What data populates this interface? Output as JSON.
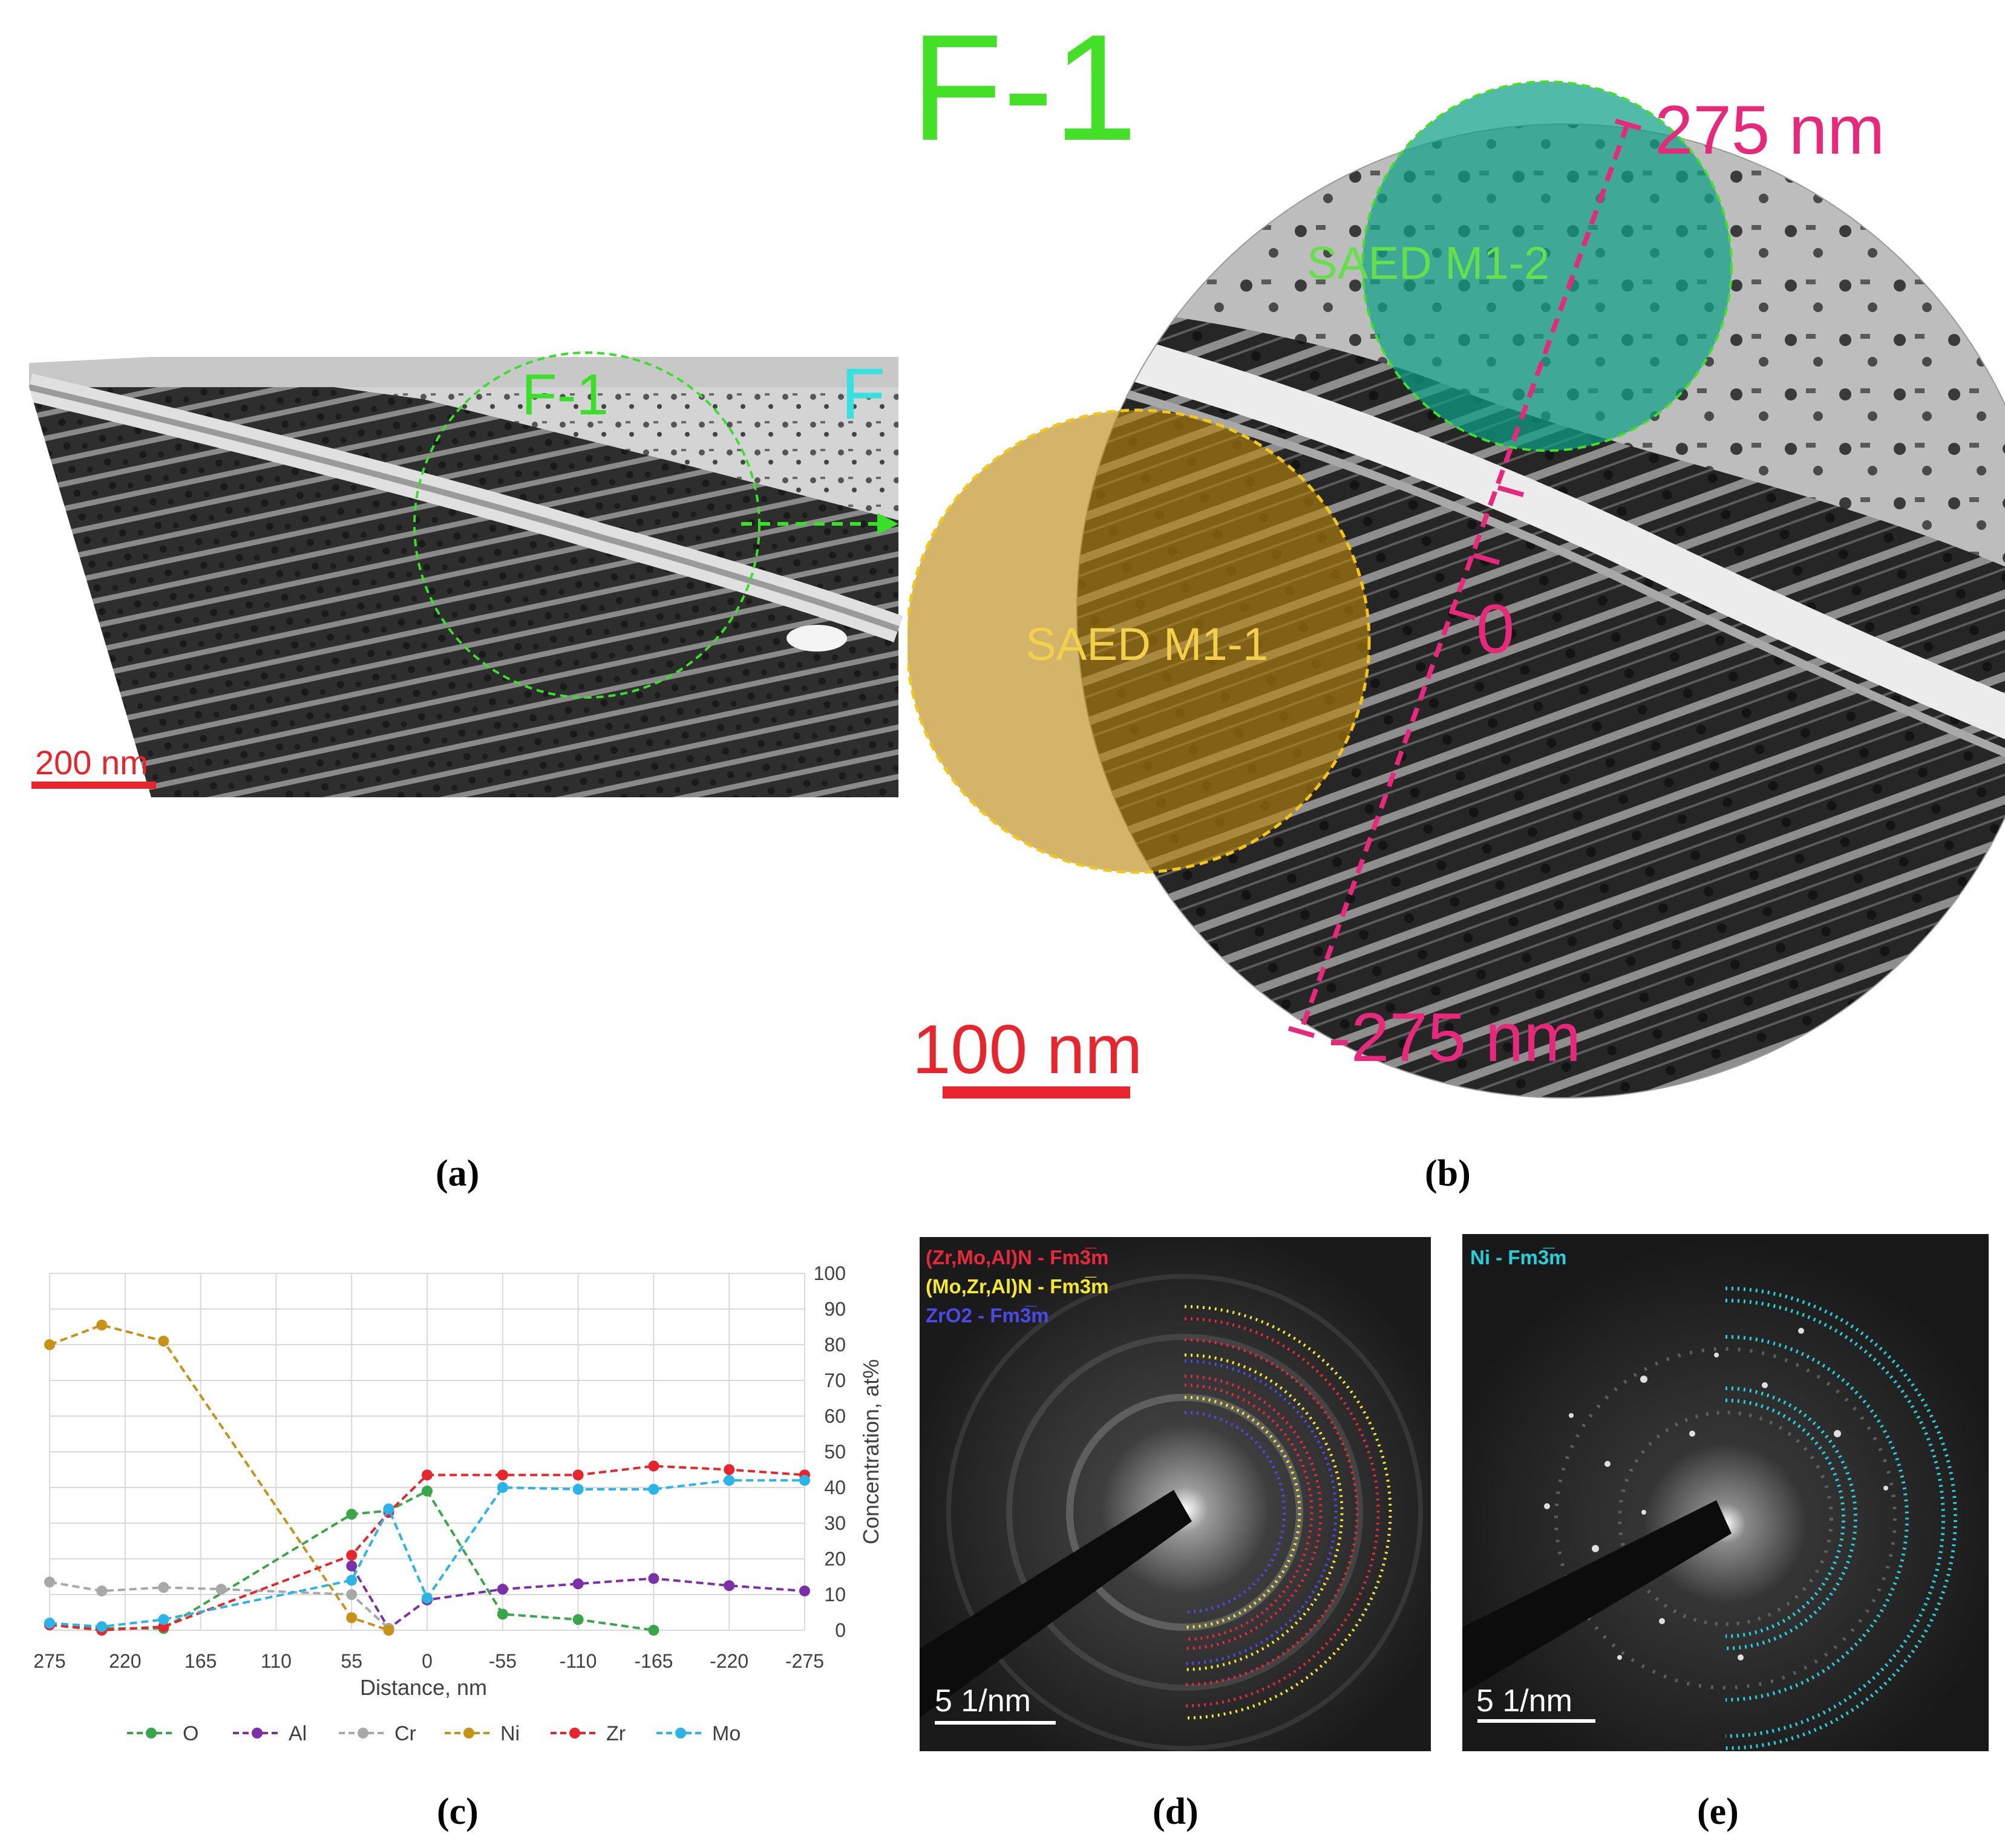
{
  "panel_a": {
    "caption": "(a)",
    "scale_bar": "200 nm",
    "region_label": "F-1",
    "zone_label": "F"
  },
  "panel_b": {
    "caption": "(b)",
    "title": "F-1",
    "scale_bar": "100 nm",
    "saed_regions": [
      "SAED M1-1",
      "SAED M1-2"
    ],
    "line_top": "275 nm",
    "line_zero": "0",
    "line_bottom": "-275 nm"
  },
  "panel_c": {
    "caption": "(c)"
  },
  "panel_d": {
    "caption": "(d)",
    "scale_bar": "5 1/nm",
    "phase_labels": [
      {
        "text": "(Zr,Mo,Al)N - Fm3̅m",
        "color": "#e8283c"
      },
      {
        "text": "(Mo,Zr,Al)N - Fm3̅m",
        "color": "#f2ea2a"
      },
      {
        "text": "ZrO2 - Fm3̅m",
        "color": "#4a4ae8"
      }
    ]
  },
  "panel_e": {
    "caption": "(e)",
    "scale_bar": "5 1/nm",
    "phase_labels": [
      {
        "text": "Ni - Fm3̅m",
        "color": "#25d0d8"
      }
    ]
  },
  "chart_data": {
    "type": "line",
    "x": [
      275,
      220,
      165,
      110,
      55,
      0,
      -55,
      -110,
      -165,
      -220,
      -275
    ],
    "xlabel": "Distance, nm",
    "ylabel": "Concentration, at%",
    "ylim": [
      0,
      100
    ],
    "yticks": [
      0,
      10,
      20,
      30,
      40,
      50,
      60,
      70,
      80,
      90,
      100
    ],
    "y_axis_side": "right",
    "grid": true,
    "legend_position": "bottom",
    "series": [
      {
        "name": "O",
        "color": "#3aa64a",
        "points": [
          [
            275,
            1.5
          ],
          [
            237,
            0.5
          ],
          [
            192,
            0.5
          ],
          [
            55,
            32.5
          ],
          [
            28,
            33.5
          ],
          [
            0,
            39
          ],
          [
            -55,
            4.5
          ],
          [
            -110,
            3
          ],
          [
            -165,
            0
          ]
        ]
      },
      {
        "name": "Al",
        "color": "#7b2fa8",
        "points": [
          [
            55,
            18
          ],
          [
            28,
            0.5
          ],
          [
            0,
            8.5
          ],
          [
            -55,
            11.5
          ],
          [
            -110,
            13
          ],
          [
            -165,
            14.5
          ],
          [
            -220,
            12.5
          ],
          [
            -275,
            11
          ]
        ]
      },
      {
        "name": "Cr",
        "color": "#a8a8a8",
        "points": [
          [
            275,
            13.5
          ],
          [
            237,
            11
          ],
          [
            192,
            12
          ],
          [
            150,
            11.5
          ],
          [
            55,
            10
          ],
          [
            28,
            0.5
          ]
        ]
      },
      {
        "name": "Ni",
        "color": "#c89216",
        "points": [
          [
            275,
            80
          ],
          [
            237,
            85.5
          ],
          [
            192,
            81
          ],
          [
            55,
            3.5
          ],
          [
            28,
            0
          ]
        ]
      },
      {
        "name": "Zr",
        "color": "#e8242c",
        "points": [
          [
            275,
            1.5
          ],
          [
            237,
            0
          ],
          [
            192,
            1
          ],
          [
            55,
            21
          ],
          [
            28,
            33
          ],
          [
            0,
            43.5
          ],
          [
            -55,
            43.5
          ],
          [
            -110,
            43.5
          ],
          [
            -165,
            46
          ],
          [
            -220,
            45
          ],
          [
            -275,
            43.5
          ]
        ]
      },
      {
        "name": "Mo",
        "color": "#2ab4e8",
        "points": [
          [
            275,
            2
          ],
          [
            237,
            1
          ],
          [
            192,
            3
          ],
          [
            55,
            14
          ],
          [
            28,
            34
          ],
          [
            0,
            9
          ],
          [
            -55,
            40
          ],
          [
            -110,
            39.5
          ],
          [
            -165,
            39.5
          ],
          [
            -220,
            42
          ],
          [
            -275,
            42
          ]
        ]
      }
    ]
  }
}
